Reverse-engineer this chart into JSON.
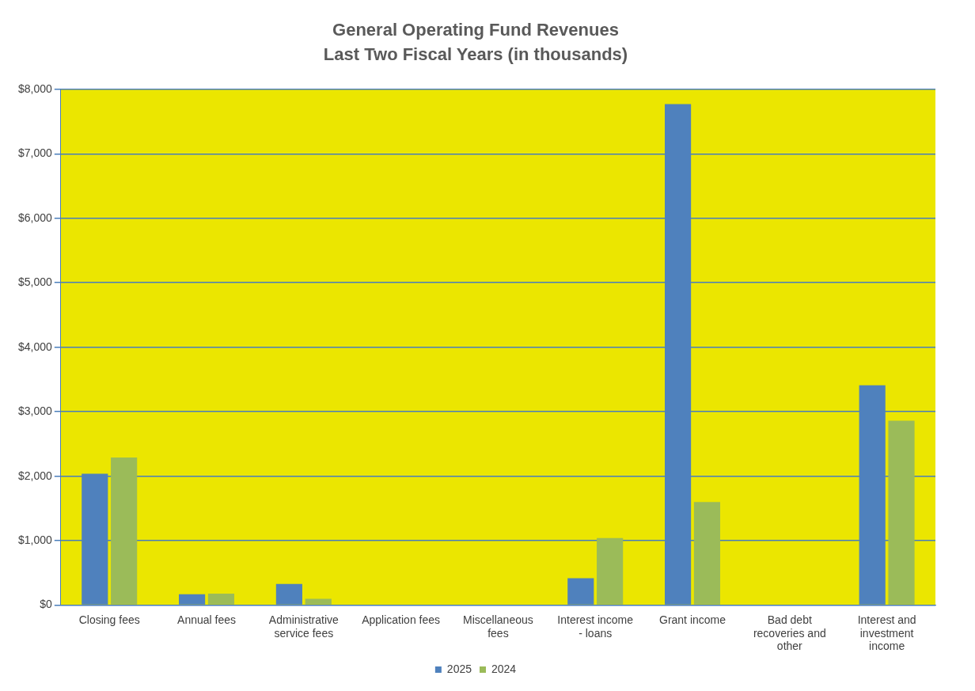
{
  "chart_data": {
    "type": "bar",
    "title": "General Operating Fund Revenues",
    "subtitle": "Last Two Fiscal Years (in thousands)",
    "categories": [
      "Closing fees",
      "Annual fees",
      "Administrative service fees",
      "Application fees",
      "Miscellaneous fees",
      "Interest income - loans",
      "Grant income",
      "Bad debt recoveries and other",
      "Interest and investment income"
    ],
    "series": [
      {
        "name": "2025",
        "color": "#4f81bd",
        "values": [
          2040,
          170,
          330,
          0,
          0,
          420,
          7770,
          0,
          3410
        ]
      },
      {
        "name": "2024",
        "color": "#9bbb59",
        "values": [
          2290,
          180,
          100,
          0,
          0,
          1040,
          1600,
          0,
          2860
        ]
      }
    ],
    "ylim": [
      0,
      8000
    ],
    "yticks": [
      {
        "value": 0,
        "label": "$0"
      },
      {
        "value": 1000,
        "label": "$1,000"
      },
      {
        "value": 2000,
        "label": "$2,000"
      },
      {
        "value": 3000,
        "label": "$3,000"
      },
      {
        "value": 4000,
        "label": "$4,000"
      },
      {
        "value": 5000,
        "label": "$5,000"
      },
      {
        "value": 6000,
        "label": "$6,000"
      },
      {
        "value": 7000,
        "label": "$7,000"
      },
      {
        "value": 8000,
        "label": "$8,000"
      }
    ],
    "grid": "y",
    "legend": "bottom"
  }
}
